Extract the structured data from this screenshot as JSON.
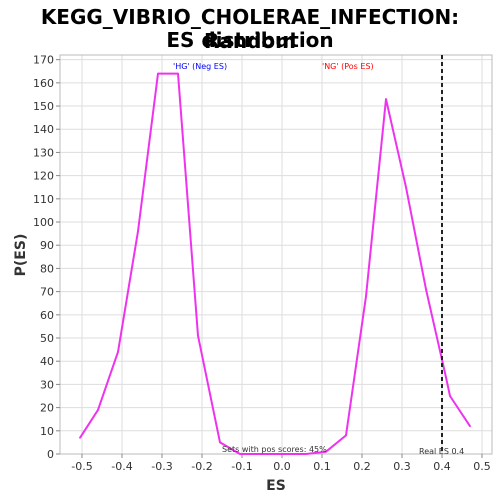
{
  "chart_data": {
    "type": "line",
    "title_line1": "KEGG_VIBRIO_CHOLERAE_INFECTION: Random",
    "title_line2": "ES distribution",
    "xlabel": "ES",
    "ylabel": "P(ES)",
    "xlim": [
      -0.555,
      0.525
    ],
    "ylim": [
      0,
      172
    ],
    "x_ticks": [
      -0.5,
      -0.4,
      -0.3,
      -0.2,
      -0.1,
      0.0,
      0.1,
      0.2,
      0.3,
      0.4,
      0.5
    ],
    "x_tick_labels": [
      "-0.5",
      "-0.4",
      "-0.3",
      "-0.2",
      "-0.1",
      "0.0",
      "0.1",
      "0.2",
      "0.3",
      "0.4",
      "0.5"
    ],
    "y_ticks": [
      0,
      10,
      20,
      30,
      40,
      50,
      60,
      70,
      80,
      90,
      100,
      110,
      120,
      130,
      140,
      150,
      160,
      170
    ],
    "grid": true,
    "series": [
      {
        "color": "#ee33ee",
        "points": [
          [
            -0.505,
            7
          ],
          [
            -0.46,
            19
          ],
          [
            -0.41,
            44
          ],
          [
            -0.36,
            96
          ],
          [
            -0.31,
            164
          ],
          [
            -0.26,
            164
          ],
          [
            -0.21,
            51
          ],
          [
            -0.155,
            5
          ],
          [
            -0.105,
            0
          ],
          [
            -0.05,
            0
          ],
          [
            0.0,
            0
          ],
          [
            0.06,
            0
          ],
          [
            0.11,
            1
          ],
          [
            0.16,
            8
          ],
          [
            0.21,
            68
          ],
          [
            0.26,
            153
          ],
          [
            0.31,
            115
          ],
          [
            0.36,
            71
          ],
          [
            0.41,
            33
          ],
          [
            0.42,
            25
          ],
          [
            0.47,
            12
          ]
        ]
      }
    ],
    "real_es": 0.4,
    "annotations": {
      "neg_label": "'HG' (Neg ES)",
      "neg_color": "#0000ff",
      "pos_label": "'NG' (Pos ES)",
      "pos_color": "#ff0000",
      "sets_pos_text": "Sets with pos scores: 45%",
      "real_es_text": "Real ES 0.4"
    }
  }
}
